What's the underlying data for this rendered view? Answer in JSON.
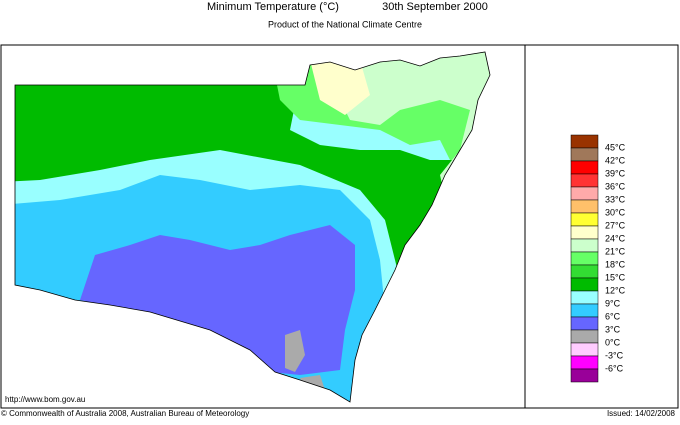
{
  "header": {
    "title": "Minimum Temperature (°C)",
    "date": "30th September 2000",
    "subtitle": "Product of the National Climate Centre"
  },
  "legend": {
    "labels": [
      "45°C",
      "42°C",
      "39°C",
      "36°C",
      "33°C",
      "30°C",
      "27°C",
      "24°C",
      "21°C",
      "18°C",
      "15°C",
      "12°C",
      "9°C",
      "6°C",
      "3°C",
      "0°C",
      "-3°C",
      "-6°C"
    ],
    "colors": [
      "#993300",
      "#a0785a",
      "#ff0000",
      "#ff3333",
      "#ffaaaa",
      "#ffc06a",
      "#ffff33",
      "#ffffcc",
      "#ccffcc",
      "#66ff66",
      "#33dd33",
      "#00bb00",
      "#99ffff",
      "#33ccff",
      "#6666ff",
      "#aaaaaa",
      "#ffccff",
      "#ff00ff",
      "#990099"
    ]
  },
  "footer": {
    "url": "http://www.bom.gov.au",
    "copyright": "© Commonwealth of Australia 2008, Australian Bureau of Meteorology",
    "issued": "Issued: 14/02/2008"
  }
}
